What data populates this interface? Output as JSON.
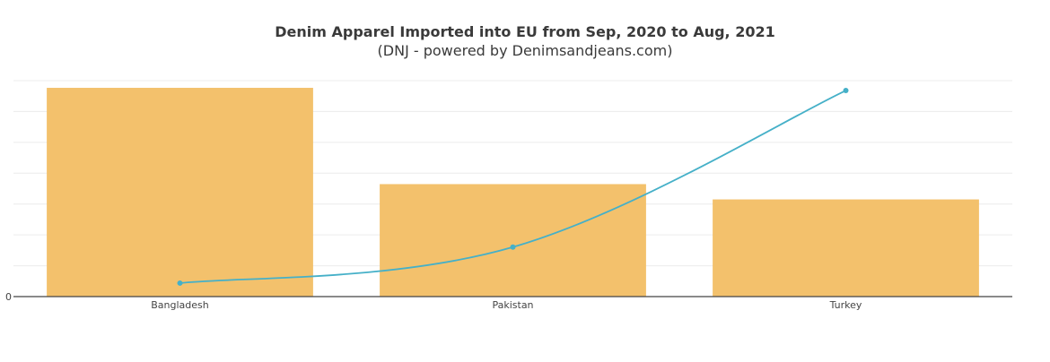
{
  "chart_data": {
    "type": "bar",
    "title": "Denim Apparel Imported into EU from Sep, 2020 to Aug, 2021",
    "subtitle": "(DNJ - powered by Denimsandjeans.com)",
    "categories": [
      "Bangladesh",
      "Pakistan",
      "Turkey"
    ],
    "series": [
      {
        "type": "bar",
        "values": [
          232,
          125,
          108
        ]
      },
      {
        "type": "line",
        "values": [
          15,
          55,
          229
        ]
      }
    ],
    "y_tick_labels": [
      "0"
    ],
    "ylim": [
      0,
      240
    ],
    "grid": true,
    "colors": {
      "bar": "#f3c16c",
      "line": "#45b0c8",
      "grid": "#ececec",
      "axis": "#444444"
    }
  }
}
